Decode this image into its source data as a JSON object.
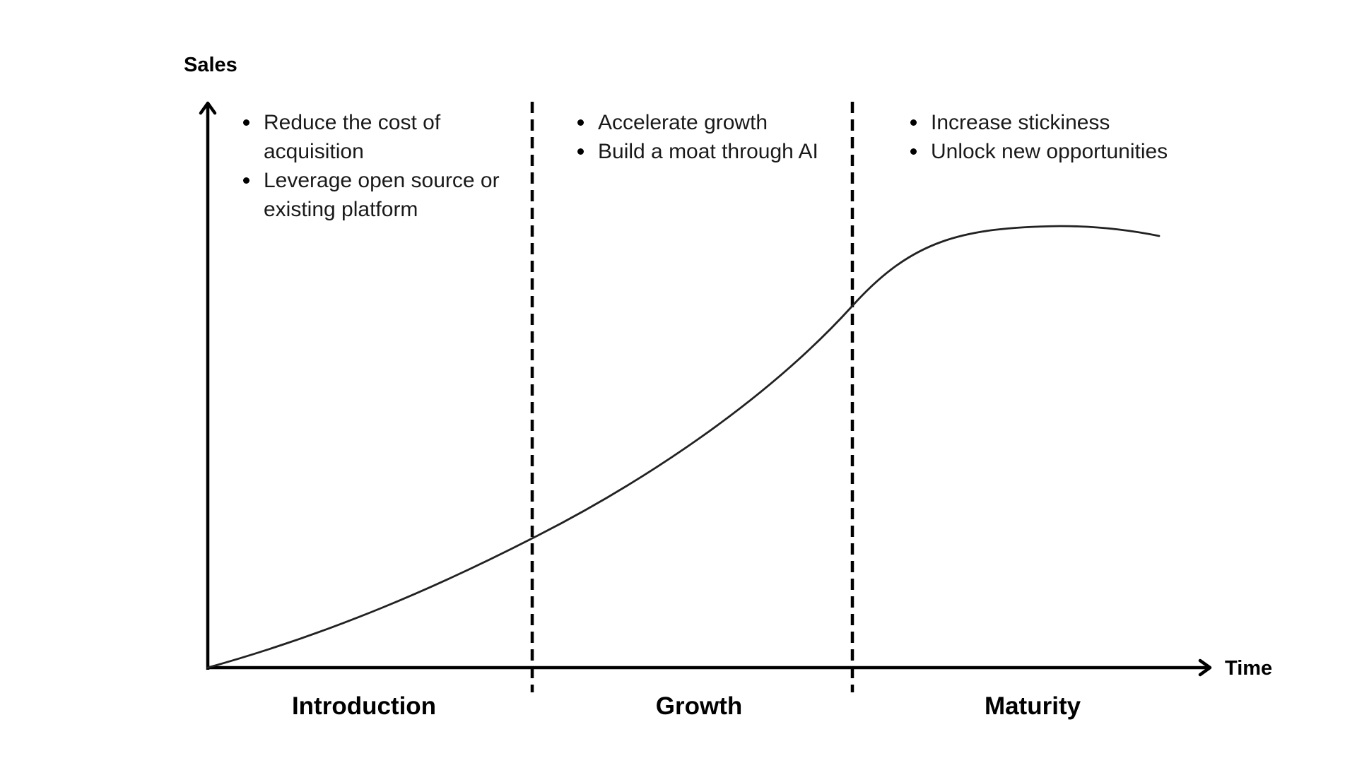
{
  "axes": {
    "y_label": "Sales",
    "x_label": "Time"
  },
  "stages": [
    {
      "name": "Introduction",
      "bullets": [
        "Reduce the cost of acquisition",
        "Leverage open source or existing platform"
      ]
    },
    {
      "name": "Growth",
      "bullets": [
        "Accelerate growth",
        "Build a moat through AI"
      ]
    },
    {
      "name": "Maturity",
      "bullets": [
        "Increase stickiness",
        "Unlock new opportunities"
      ]
    }
  ],
  "colors": {
    "axis": "#000000",
    "curve": "#222222",
    "divider": "#000000",
    "text": "#1a1a1a"
  }
}
